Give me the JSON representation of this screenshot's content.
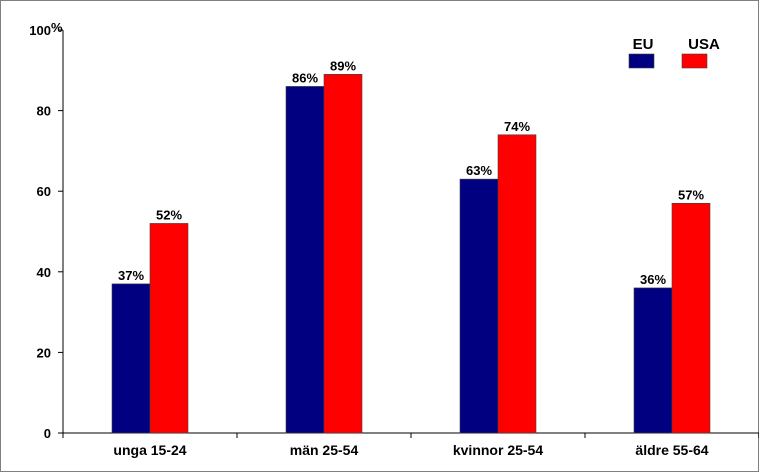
{
  "chart_data": {
    "type": "bar",
    "ylabel": "%",
    "ylim": [
      0,
      100
    ],
    "yticks": [
      0,
      20,
      40,
      60,
      80,
      100
    ],
    "grid": false,
    "legend_position": "top-right",
    "categories": [
      "unga 15-24",
      "män 25-54",
      "kvinnor 25-54",
      "äldre 55-64"
    ],
    "series": [
      {
        "name": "EU",
        "color": "#000080",
        "values": [
          37,
          86,
          63,
          36
        ],
        "labels": [
          "37%",
          "86%",
          "63%",
          "36%"
        ]
      },
      {
        "name": "USA",
        "color": "#ff0000",
        "values": [
          52,
          89,
          74,
          57
        ],
        "labels": [
          "52%",
          "89%",
          "74%",
          "57%"
        ]
      }
    ]
  }
}
